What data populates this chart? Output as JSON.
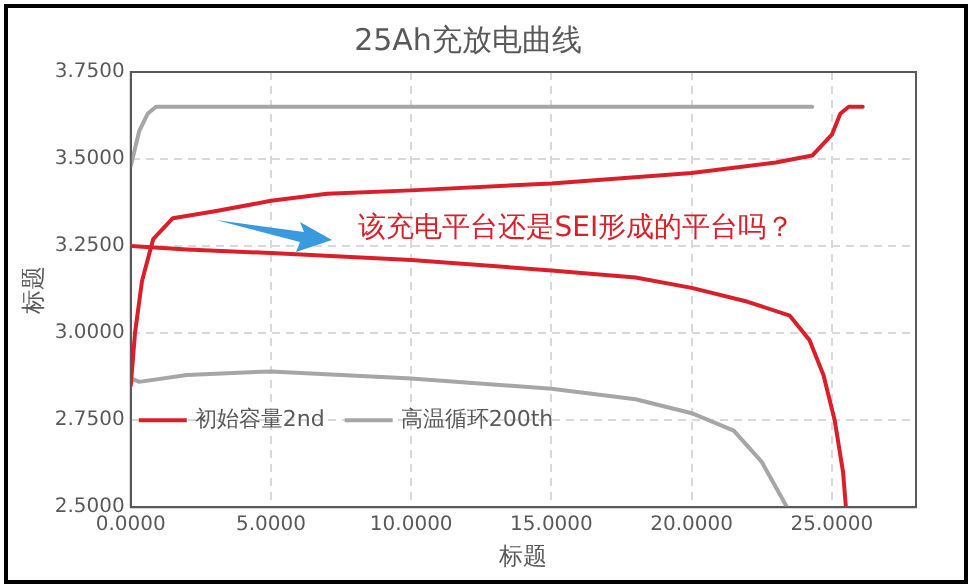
{
  "chart_data": {
    "type": "line",
    "title": "25Ah充放电曲线",
    "xlabel": "标题",
    "ylabel": "标题",
    "xlim": [
      0,
      28
    ],
    "ylim": [
      2.5,
      3.75
    ],
    "xticks": [
      {
        "value": 0,
        "label": "0.0000"
      },
      {
        "value": 5,
        "label": "5.0000"
      },
      {
        "value": 10,
        "label": "10.0000"
      },
      {
        "value": 15,
        "label": "15.0000"
      },
      {
        "value": 20,
        "label": "20.0000"
      },
      {
        "value": 25,
        "label": "25.0000"
      }
    ],
    "yticks": [
      {
        "value": 2.5,
        "label": "2.5000"
      },
      {
        "value": 2.75,
        "label": "2.7500"
      },
      {
        "value": 3,
        "label": "3.0000"
      },
      {
        "value": 3.25,
        "label": "3.2500"
      },
      {
        "value": 3.5,
        "label": "3.5000"
      },
      {
        "value": 3.75,
        "label": "3.7500"
      }
    ],
    "grid": true,
    "legend": "bottom left",
    "marker": "none",
    "line_style": "solid",
    "annotations": [
      "该充电平台还是SEI形成的平台吗？"
    ],
    "series": [
      {
        "name": "初始容量2nd",
        "color": "#d9202a",
        "x": [
          0,
          0.15,
          0.4,
          0.8,
          1.5,
          3,
          5,
          7,
          10,
          15,
          20,
          23,
          24.3,
          25,
          25.3,
          25.6,
          26.1
        ],
        "values": [
          2.85,
          3.0,
          3.15,
          3.27,
          3.33,
          3.35,
          3.38,
          3.4,
          3.41,
          3.43,
          3.46,
          3.49,
          3.51,
          3.57,
          3.63,
          3.65,
          3.65
        ]
      },
      {
        "color": "#d9202a",
        "x": [
          0,
          2,
          5,
          10,
          15,
          18,
          20,
          22,
          23.5,
          24.2,
          24.7,
          25.1,
          25.4,
          25.5
        ],
        "values": [
          3.25,
          3.24,
          3.23,
          3.21,
          3.18,
          3.16,
          3.13,
          3.09,
          3.05,
          2.98,
          2.88,
          2.75,
          2.6,
          2.5
        ]
      },
      {
        "name": "高温循环200th",
        "color": "#a6a6a6",
        "x": [
          0,
          0.3,
          0.6,
          0.9,
          24.3
        ],
        "values": [
          3.48,
          3.58,
          3.63,
          3.65,
          3.65
        ]
      },
      {
        "color": "#a6a6a6",
        "x": [
          0,
          0.3,
          2,
          5,
          10,
          15,
          18,
          20,
          21.5,
          22.5,
          23.4
        ],
        "values": [
          2.87,
          2.86,
          2.88,
          2.89,
          2.87,
          2.84,
          2.81,
          2.77,
          2.72,
          2.63,
          2.5
        ]
      }
    ]
  }
}
